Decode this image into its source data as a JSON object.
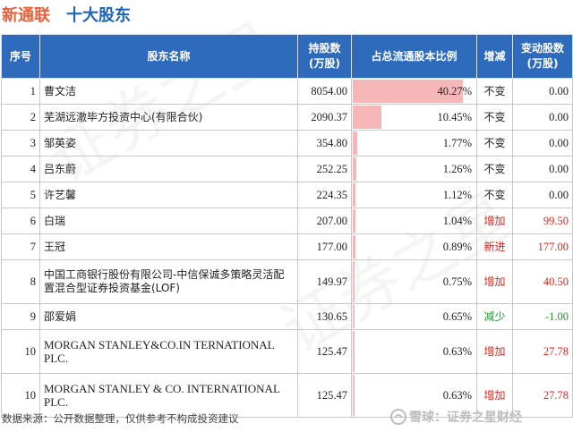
{
  "header": {
    "company": "新通联",
    "subtitle": "十大股东"
  },
  "columns": {
    "seq": "序号",
    "name": "股东名称",
    "shares": "持股数\n(万股)",
    "ratio": "占总流通股本比例",
    "change_type": "增减",
    "change_amount": "变动股数\n(万股)"
  },
  "rows": [
    {
      "seq": "1",
      "name": "曹文洁",
      "shares": "8054.00",
      "ratio": "40.27%",
      "ratio_value": 40.27,
      "change_type": "不变",
      "change_amount": "0.00",
      "tone": "neutral"
    },
    {
      "seq": "2",
      "name": "芜湖远澈毕方投资中心(有限合伙)",
      "shares": "2090.37",
      "ratio": "10.45%",
      "ratio_value": 10.45,
      "change_type": "不变",
      "change_amount": "0.00",
      "tone": "neutral"
    },
    {
      "seq": "3",
      "name": "邹英姿",
      "shares": "354.80",
      "ratio": "1.77%",
      "ratio_value": 1.77,
      "change_type": "不变",
      "change_amount": "0.00",
      "tone": "neutral"
    },
    {
      "seq": "4",
      "name": "吕东蔚",
      "shares": "252.25",
      "ratio": "1.26%",
      "ratio_value": 1.26,
      "change_type": "不变",
      "change_amount": "0.00",
      "tone": "neutral"
    },
    {
      "seq": "5",
      "name": "许艺馨",
      "shares": "224.35",
      "ratio": "1.12%",
      "ratio_value": 1.12,
      "change_type": "不变",
      "change_amount": "0.00",
      "tone": "neutral"
    },
    {
      "seq": "6",
      "name": "白瑞",
      "shares": "207.00",
      "ratio": "1.04%",
      "ratio_value": 1.04,
      "change_type": "增加",
      "change_amount": "99.50",
      "tone": "up"
    },
    {
      "seq": "7",
      "name": "王冠",
      "shares": "177.00",
      "ratio": "0.89%",
      "ratio_value": 0.89,
      "change_type": "新进",
      "change_amount": "177.00",
      "tone": "up"
    },
    {
      "seq": "8",
      "name": "中国工商银行股份有限公司-中信保诚多策略灵活配置混合型证券投资基金(LOF)",
      "shares": "149.97",
      "ratio": "0.75%",
      "ratio_value": 0.75,
      "change_type": "增加",
      "change_amount": "40.50",
      "tone": "up"
    },
    {
      "seq": "9",
      "name": "邵爱娟",
      "shares": "130.65",
      "ratio": "0.65%",
      "ratio_value": 0.65,
      "change_type": "减少",
      "change_amount": "-1.00",
      "tone": "down"
    },
    {
      "seq": "10",
      "name": "MORGAN STANLEY&CO.IN TERNATIONAL PLC.",
      "shares": "125.47",
      "ratio": "0.63%",
      "ratio_value": 0.63,
      "change_type": "增加",
      "change_amount": "27.78",
      "tone": "up"
    },
    {
      "seq": "10",
      "name": "MORGAN STANLEY & CO. INTERNATIONAL PLC.",
      "shares": "125.47",
      "ratio": "0.63%",
      "ratio_value": 0.63,
      "change_type": "增加",
      "change_amount": "27.78",
      "tone": "up"
    }
  ],
  "ratio_scale_max": 100,
  "colors": {
    "header_bg": "#2f6bbd",
    "bar": "#f5b7b7",
    "up": "#e0241c",
    "down": "#1e9a2a",
    "company": "#e8603c",
    "subtitle": "#1a63b8"
  },
  "footer": {
    "source": "数据来源：公开数据整理，仅供参考不构成投资建议",
    "brand": "雪球：证券之星财经",
    "brand_icon": "snowball-icon"
  }
}
